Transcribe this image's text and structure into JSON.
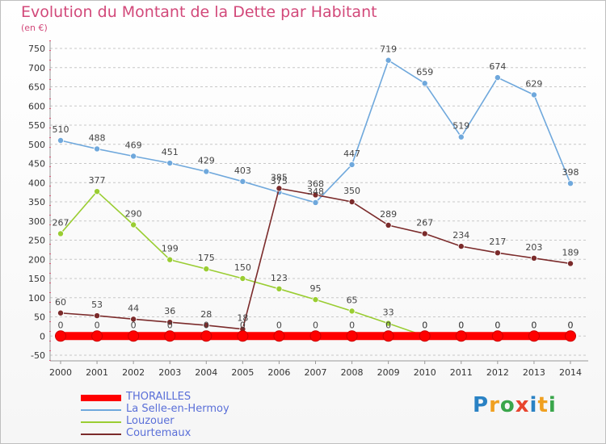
{
  "chart_data": {
    "type": "line",
    "title": "Evolution du Montant de la Dette par Habitant",
    "subtitle": "(en €)",
    "xlabel": "",
    "ylabel": "",
    "ylim": [
      -50,
      750
    ],
    "ytick_step": 50,
    "grid": "horizontal dashed",
    "legend_position": "bottom-left",
    "x": [
      2000,
      2001,
      2002,
      2003,
      2004,
      2005,
      2006,
      2007,
      2008,
      2009,
      2010,
      2011,
      2012,
      2013,
      2014
    ],
    "series": [
      {
        "name": "THORAILLES",
        "color": "#ff0000",
        "values": [
          0,
          0,
          0,
          0,
          0,
          0,
          0,
          0,
          0,
          0,
          0,
          0,
          0,
          0,
          0
        ]
      },
      {
        "name": "La Selle-en-Hermoy",
        "color": "#6fa8dc",
        "values": [
          510,
          488,
          469,
          451,
          429,
          403,
          375,
          348,
          447,
          719,
          659,
          519,
          674,
          629,
          398
        ]
      },
      {
        "name": "Louzouer",
        "color": "#9acd32",
        "values": [
          267,
          377,
          290,
          199,
          175,
          150,
          123,
          95,
          65,
          33,
          0,
          0,
          0,
          0,
          0
        ]
      },
      {
        "name": "Courtemaux",
        "color": "#7b2b2b",
        "values": [
          60,
          53,
          44,
          36,
          28,
          18,
          385,
          368,
          350,
          289,
          267,
          234,
          217,
          203,
          189
        ]
      }
    ]
  },
  "logo": {
    "text": "Proxiti",
    "colors": [
      "#2a82c4",
      "#f0a020",
      "#3aa64b",
      "#e8452e",
      "#2a82c4",
      "#f0a020",
      "#3aa64b"
    ]
  }
}
